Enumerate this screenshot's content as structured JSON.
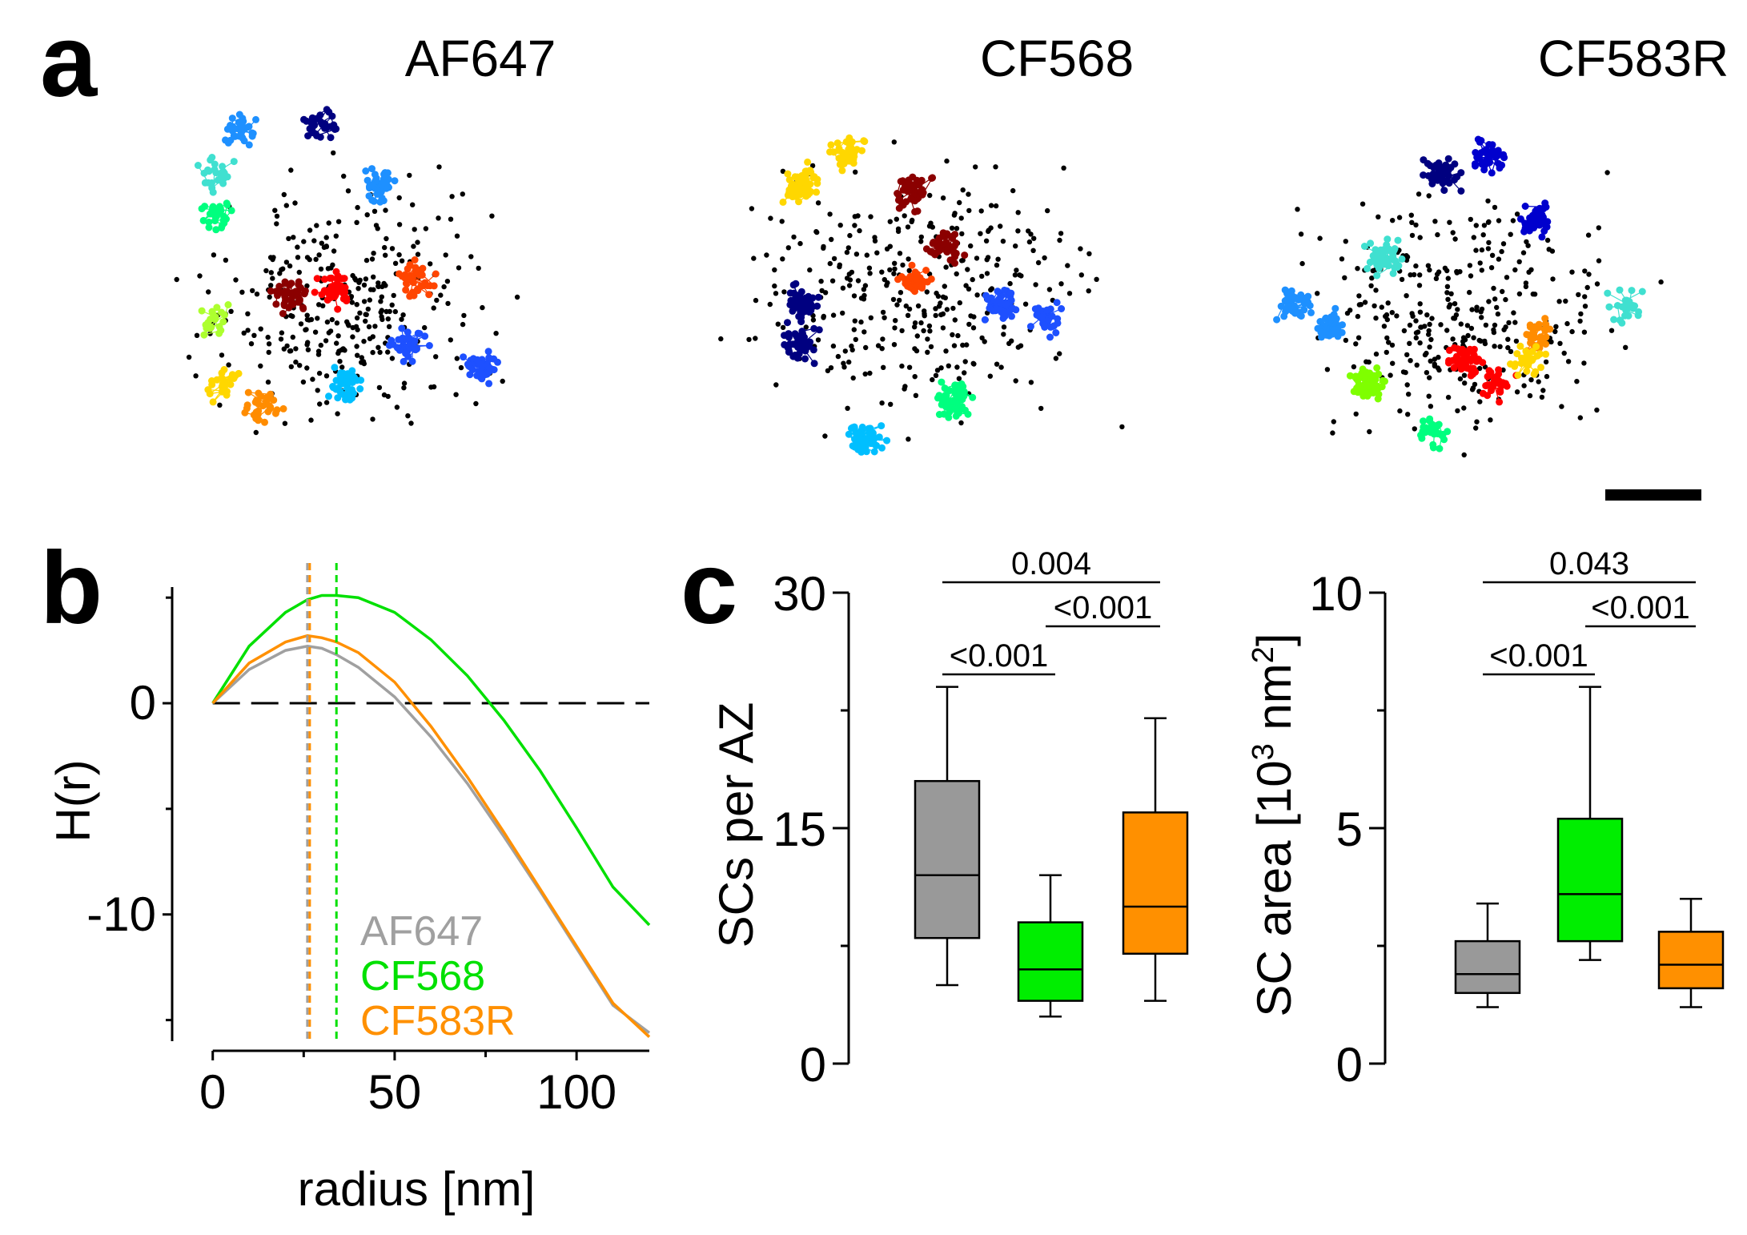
{
  "panel_labels": {
    "a": "a",
    "b": "b",
    "c": "c"
  },
  "panel_a": {
    "titles": [
      "AF647",
      "CF568",
      "CF583R"
    ],
    "palette": [
      "#000080",
      "#0000cd",
      "#1e50ff",
      "#1e90ff",
      "#00bfff",
      "#40e0d0",
      "#00ff7f",
      "#7fff00",
      "#adff2f",
      "#ffd700",
      "#ff8c00",
      "#ff4500",
      "#ff0000",
      "#8b0000"
    ],
    "scale_bar_color": "#000000"
  },
  "chart_data": [
    {
      "type": "line",
      "title": "",
      "xlabel": "radius [nm]",
      "ylabel": "H(r)",
      "xlim": [
        -5,
        120
      ],
      "ylim": [
        -16,
        5.5
      ],
      "xticks": [
        0,
        50,
        100
      ],
      "yticks": [
        0,
        -10
      ],
      "x": [
        0,
        10,
        20,
        26,
        30,
        34,
        40,
        50,
        60,
        70,
        80,
        90,
        100,
        110,
        120
      ],
      "series": [
        {
          "name": "AF647",
          "color": "#a0a0a0",
          "peak_r": 26,
          "values": [
            0,
            1.6,
            2.5,
            2.7,
            2.6,
            2.3,
            1.7,
            0.3,
            -1.6,
            -3.8,
            -6.3,
            -8.9,
            -11.6,
            -14.3,
            -15.6
          ]
        },
        {
          "name": "CF568",
          "color": "#00e000",
          "peak_r": 34,
          "values": [
            0,
            2.7,
            4.3,
            4.9,
            5.1,
            5.1,
            5.0,
            4.3,
            3.0,
            1.3,
            -0.8,
            -3.2,
            -5.9,
            -8.7,
            -10.5
          ]
        },
        {
          "name": "CF583R",
          "color": "#ff9000",
          "peak_r": 26,
          "values": [
            0,
            1.9,
            2.9,
            3.2,
            3.1,
            2.9,
            2.4,
            1.0,
            -1.1,
            -3.5,
            -6.1,
            -8.8,
            -11.5,
            -14.2,
            -15.8
          ]
        }
      ],
      "zero_line": true,
      "legend": [
        "AF647",
        "CF568",
        "CF583R"
      ],
      "legend_position": "bottom-right"
    },
    {
      "type": "box",
      "ylabel": "SCs per AZ",
      "ylim": [
        0,
        30
      ],
      "yticks": [
        0,
        15,
        30
      ],
      "groups": [
        {
          "name": "AF647",
          "color": "#999999",
          "whisker_low": 5,
          "q1": 8,
          "median": 12,
          "q3": 18,
          "whisker_high": 24
        },
        {
          "name": "CF568",
          "color": "#00ee00",
          "whisker_low": 3,
          "q1": 4,
          "median": 6,
          "q3": 9,
          "whisker_high": 12
        },
        {
          "name": "CF583R",
          "color": "#ff9000",
          "whisker_low": 4,
          "q1": 7,
          "median": 10,
          "q3": 16,
          "whisker_high": 22
        }
      ],
      "significance": [
        {
          "from": 0,
          "to": 1,
          "level": 1,
          "label": "<0.001"
        },
        {
          "from": 1,
          "to": 2,
          "level": 2,
          "label": "<0.001"
        },
        {
          "from": 0,
          "to": 2,
          "level": 3,
          "label": "0.004"
        }
      ]
    },
    {
      "type": "box",
      "ylabel": "SC area [10",
      "ylabel_sup": "3",
      "ylabel_unit": " nm",
      "ylabel_sup2": "2",
      "ylabel_end": "]",
      "ylim": [
        0,
        10
      ],
      "yticks": [
        0,
        5,
        10
      ],
      "groups": [
        {
          "name": "AF647",
          "color": "#999999",
          "whisker_low": 1.2,
          "q1": 1.5,
          "median": 1.9,
          "q3": 2.6,
          "whisker_high": 3.4
        },
        {
          "name": "CF568",
          "color": "#00ee00",
          "whisker_low": 2.2,
          "q1": 2.6,
          "median": 3.6,
          "q3": 5.2,
          "whisker_high": 8.0
        },
        {
          "name": "CF583R",
          "color": "#ff9000",
          "whisker_low": 1.2,
          "q1": 1.6,
          "median": 2.1,
          "q3": 2.8,
          "whisker_high": 3.5
        }
      ],
      "significance": [
        {
          "from": 0,
          "to": 1,
          "level": 1,
          "label": "<0.001"
        },
        {
          "from": 1,
          "to": 2,
          "level": 2,
          "label": "<0.001"
        },
        {
          "from": 0,
          "to": 2,
          "level": 3,
          "label": "0.043"
        }
      ]
    }
  ]
}
